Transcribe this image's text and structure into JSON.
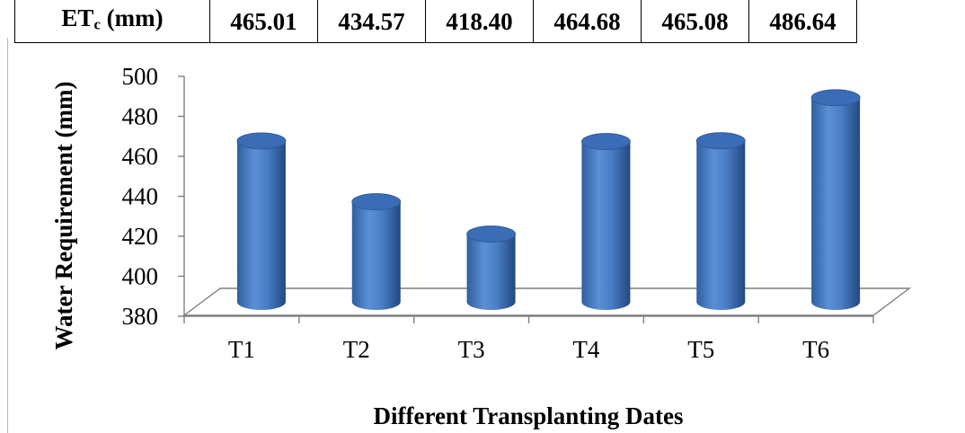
{
  "table": {
    "header_main": "ET",
    "header_sub": "c",
    "header_unit": " (mm)",
    "values": [
      "465.01",
      "434.57",
      "418.40",
      "464.68",
      "465.08",
      "486.64"
    ]
  },
  "chart_data": {
    "type": "bar",
    "style": "3d-cylinder",
    "categories": [
      "T1",
      "T2",
      "T3",
      "T4",
      "T5",
      "T6"
    ],
    "values": [
      465.01,
      434.57,
      418.4,
      464.68,
      465.08,
      486.64
    ],
    "xlabel": "Different Transplanting Dates",
    "ylabel": "Water Requirement (mm)",
    "ylim": [
      380,
      500
    ],
    "yticks": [
      "380",
      "400",
      "420",
      "440",
      "460",
      "480",
      "500"
    ],
    "grid": false,
    "legend": "none",
    "bar_color": "#3f74c0"
  }
}
